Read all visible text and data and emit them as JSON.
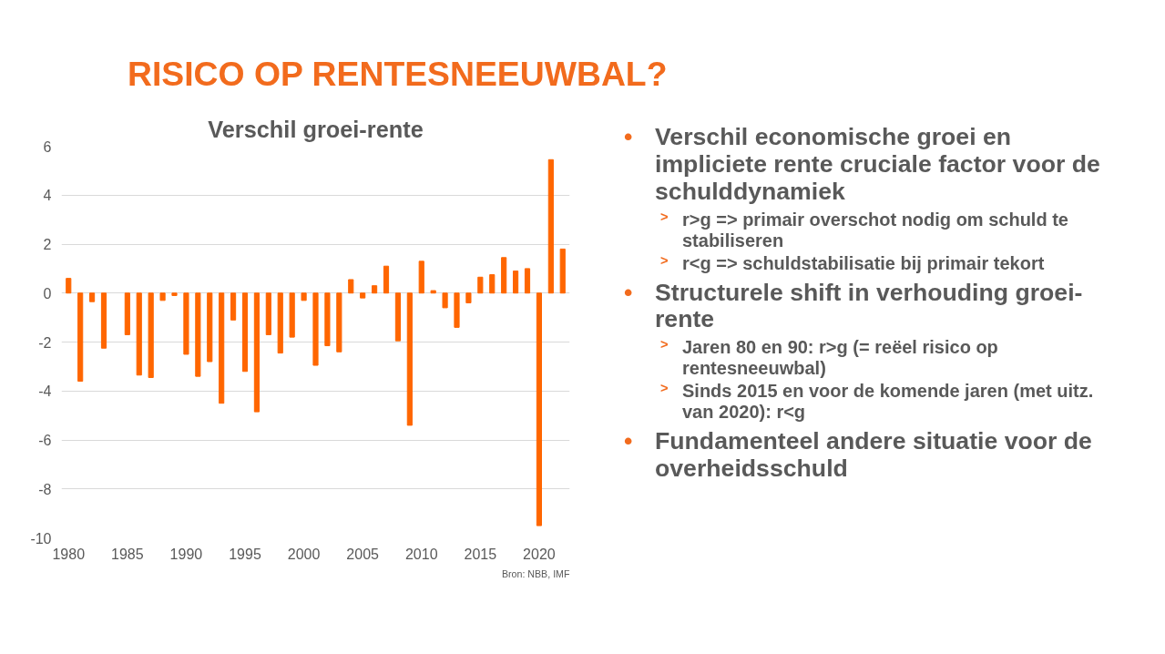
{
  "chart_data": {
    "type": "bar",
    "title": "RISICO OP RENTESNEEUWBAL?",
    "subtitle": "Verschil groei-rente",
    "x": [
      1980,
      1981,
      1982,
      1983,
      1984,
      1985,
      1986,
      1987,
      1988,
      1989,
      1990,
      1991,
      1992,
      1993,
      1994,
      1995,
      1996,
      1997,
      1998,
      1999,
      2000,
      2001,
      2002,
      2003,
      2004,
      2005,
      2006,
      2007,
      2008,
      2009,
      2010,
      2011,
      2012,
      2013,
      2014,
      2015,
      2016,
      2017,
      2018,
      2019,
      2020,
      2021,
      2022
    ],
    "values": [
      0.6,
      -3.6,
      -0.35,
      -2.25,
      null,
      -1.7,
      -3.35,
      -3.45,
      -0.3,
      -0.1,
      -2.5,
      -3.4,
      -2.8,
      -4.5,
      -1.1,
      -3.2,
      -4.85,
      -1.7,
      -2.45,
      -1.8,
      -0.3,
      -2.95,
      -2.15,
      -2.4,
      0.55,
      -0.2,
      0.3,
      1.1,
      -1.95,
      -5.4,
      1.3,
      0.1,
      -0.6,
      -1.4,
      -0.4,
      0.65,
      0.75,
      1.45,
      0.9,
      1.0,
      -9.5,
      5.45,
      1.8
    ],
    "color": "#ff6600",
    "xlim": [
      1979.4,
      2022.6
    ],
    "xticks": [
      1980,
      1985,
      1990,
      1995,
      2000,
      2005,
      2010,
      2015,
      2020
    ],
    "ylim": [
      -10,
      6
    ],
    "yticks": [
      -10,
      -8,
      -6,
      -4,
      -2,
      0,
      2,
      4,
      6
    ],
    "grid": "y",
    "annotations": [
      "Bron: NBB, IMF",
      "• Verschil economische groei en impliciete rente cruciale factor voor de schulddynamiek",
      "> r>g => primair overschot nodig om schuld te stabiliseren",
      "> r<g => schuldstabilisatie bij primair tekort",
      "• Structurele shift in verhouding groei-rente",
      "> Jaren 80 en 90: r>g (= reëel risico op rentesneeuwbal)",
      "> Sinds 2015 en voor de komende jaren (met uitz. van 2020): r<g",
      "• Fundamenteel andere situatie voor de overheidsschuld"
    ]
  }
}
